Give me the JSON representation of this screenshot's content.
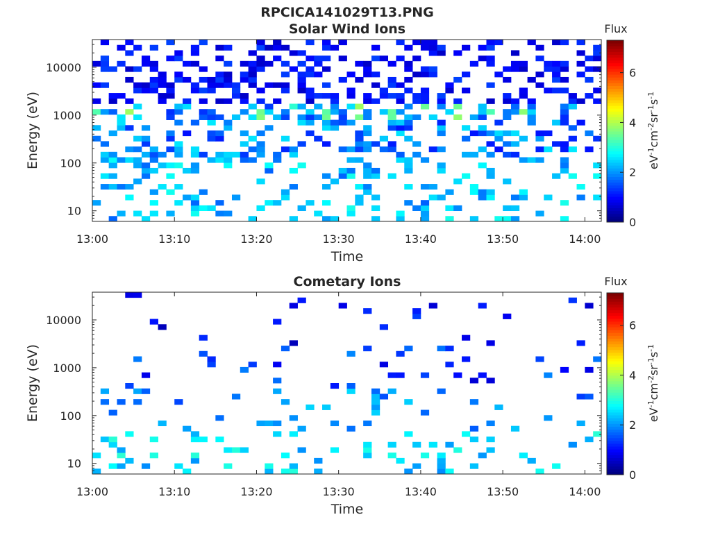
{
  "figure_title": "RPCICA141029T13.PNG",
  "panels": [
    {
      "title": "Solar Wind Ions",
      "xlabel": "Time",
      "ylabel": "Energy (eV)",
      "colorbar_label": "Flux",
      "colorbar_units": ""
    },
    {
      "title": "Cometary Ions",
      "xlabel": "Time",
      "ylabel": "Energy (eV)",
      "colorbar_label": "Flux",
      "colorbar_units": ""
    }
  ],
  "colormap": "jet",
  "colors": {
    "background": "#ffffff",
    "axis": "#262626"
  },
  "chart_data": [
    {
      "type": "heatmap",
      "title": "Solar Wind Ions",
      "xlabel": "Time",
      "ylabel": "Energy (eV)",
      "x_ticks": [
        "13:00",
        "13:10",
        "13:20",
        "13:30",
        "13:40",
        "13:50",
        "14:00"
      ],
      "x_range": [
        "13:00",
        "14:02"
      ],
      "y_scale": "log",
      "y_ticks": [
        10,
        100,
        1000,
        10000
      ],
      "y_range": [
        6,
        38000
      ],
      "colorbar": {
        "label": "Flux",
        "range": [
          0,
          7.3
        ],
        "ticks": [
          0,
          2,
          4,
          6
        ]
      },
      "description_of_values": "log10 flux; sparse broadband counts up to ~30 keV, periodic enhancements (~3-4) near 700-1000 eV",
      "seed": 7
    },
    {
      "type": "heatmap",
      "title": "Cometary Ions",
      "xlabel": "Time",
      "ylabel": "Energy (eV)",
      "x_ticks": [
        "13:00",
        "13:10",
        "13:20",
        "13:30",
        "13:40",
        "13:50",
        "14:00"
      ],
      "x_range": [
        "13:00",
        "14:02"
      ],
      "y_scale": "log",
      "y_ticks": [
        10,
        100,
        1000,
        10000
      ],
      "y_range": [
        6,
        38000
      ],
      "colorbar": {
        "label": "Flux",
        "range": [
          0,
          7.3
        ],
        "ticks": [
          0,
          2,
          4,
          6
        ]
      },
      "description_of_values": "log10 flux; very sparse counts, denser below ~100 eV (values ~2-3)",
      "seed": 19
    }
  ]
}
